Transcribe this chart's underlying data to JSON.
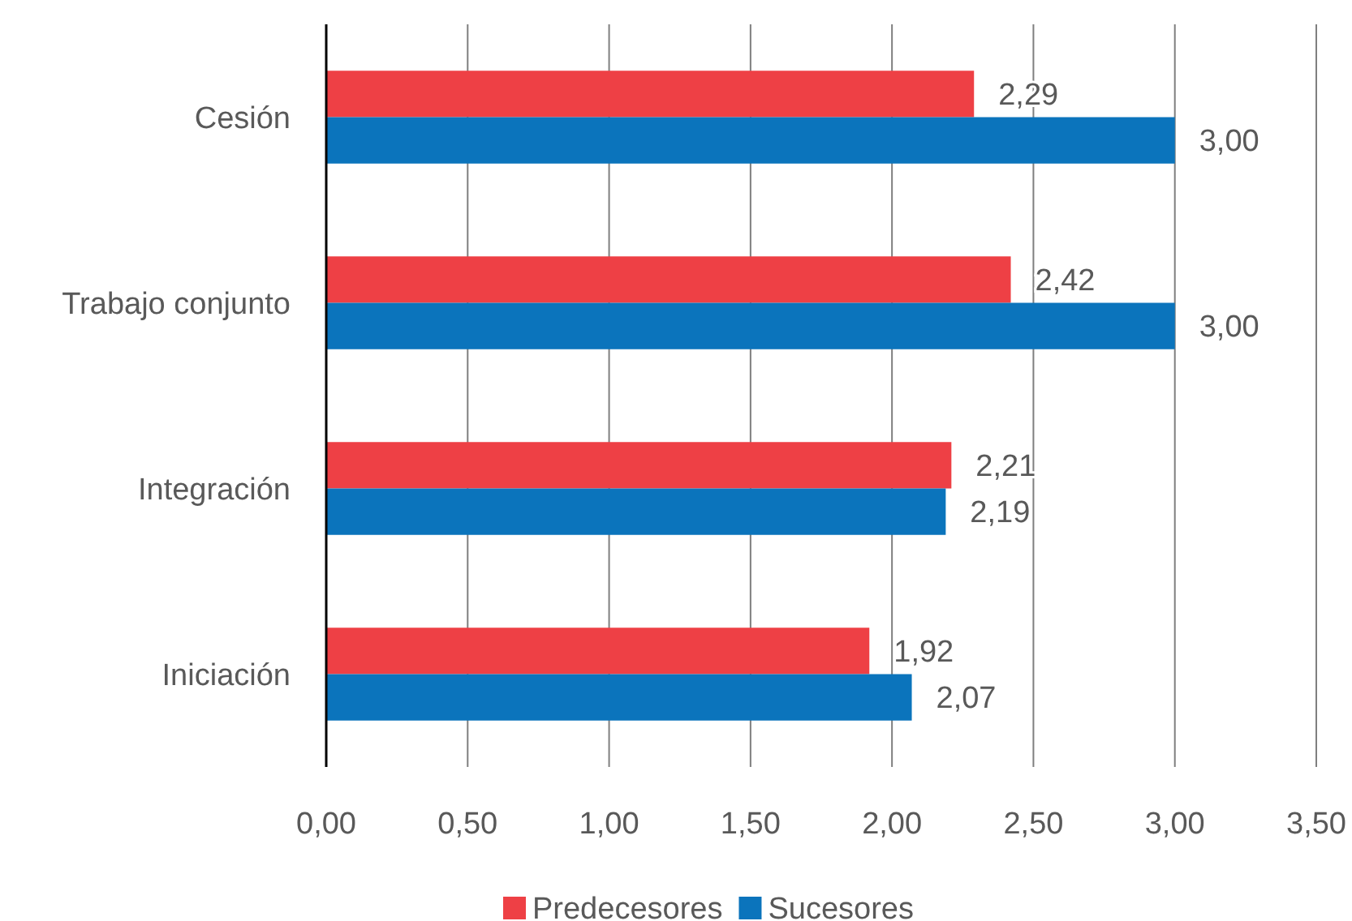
{
  "chart_data": {
    "type": "bar",
    "orientation": "horizontal",
    "categories": [
      "Cesión",
      "Trabajo conjunto",
      "Integración",
      "Iniciación"
    ],
    "series": [
      {
        "name": "Predecesores",
        "color": "#ee4045",
        "values": [
          2.29,
          2.42,
          2.21,
          1.92
        ],
        "value_labels": [
          "2,29",
          "2,42",
          "2,21",
          "1,92"
        ]
      },
      {
        "name": "Sucesores",
        "color": "#0b74bc",
        "values": [
          3.0,
          3.0,
          2.19,
          2.07
        ],
        "value_labels": [
          "3,00",
          "3,00",
          "2,19",
          "2,07"
        ]
      }
    ],
    "xlim": [
      0,
      3.5
    ],
    "xticks": [
      {
        "value": 0,
        "label": "0,00"
      },
      {
        "value": 0.5,
        "label": "0,50"
      },
      {
        "value": 1,
        "label": "1,00"
      },
      {
        "value": 1.5,
        "label": "1,50"
      },
      {
        "value": 2,
        "label": "2,00"
      },
      {
        "value": 2.5,
        "label": "2,50"
      },
      {
        "value": 3,
        "label": "3,00"
      },
      {
        "value": 3.5,
        "label": "3,50"
      }
    ],
    "grid": "x",
    "legend": "bottom"
  }
}
